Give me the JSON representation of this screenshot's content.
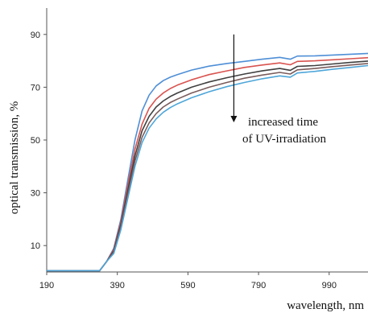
{
  "chart_data": {
    "type": "line",
    "xlabel": "wavelength, nm",
    "ylabel": "optical transmission, %",
    "xlim": [
      190,
      1100
    ],
    "ylim": [
      0,
      100
    ],
    "x_ticks": [
      190,
      390,
      590,
      790,
      990
    ],
    "y_ticks": [
      10,
      30,
      50,
      70,
      90
    ],
    "grid": false,
    "x": [
      190,
      340,
      360,
      380,
      400,
      420,
      440,
      460,
      480,
      500,
      520,
      540,
      560,
      600,
      650,
      700,
      750,
      800,
      850,
      880,
      900,
      950,
      1000,
      1050,
      1100
    ],
    "series": [
      {
        "color": "#4f8fd6",
        "values": [
          0.5,
          0.5,
          4,
          9,
          20,
          35,
          50,
          61,
          67,
          70.5,
          72.5,
          73.8,
          74.8,
          76.5,
          78.0,
          79.0,
          79.8,
          80.6,
          81.3,
          80.6,
          81.8,
          81.9,
          82.2,
          82.5,
          82.8
        ]
      },
      {
        "color": "#d9534f",
        "values": [
          0.5,
          0.5,
          4,
          8.5,
          19,
          33,
          46.5,
          56,
          62,
          65.5,
          67.8,
          69.5,
          70.8,
          72.8,
          74.8,
          76.2,
          77.5,
          78.4,
          79.2,
          78.5,
          79.8,
          80.0,
          80.4,
          80.8,
          81.2
        ]
      },
      {
        "color": "#404040",
        "values": [
          0.5,
          0.5,
          4,
          8,
          18,
          31,
          44,
          53.5,
          59,
          62.5,
          64.8,
          66.5,
          67.8,
          70.0,
          72.0,
          73.6,
          75.0,
          76.2,
          77.1,
          76.4,
          77.9,
          78.2,
          78.8,
          79.4,
          79.9
        ]
      },
      {
        "color": "#7a5c5c",
        "values": [
          0.5,
          0.5,
          4,
          7.5,
          17,
          29.5,
          42,
          51,
          56.5,
          60,
          62.5,
          64.2,
          65.5,
          67.8,
          70.0,
          71.8,
          73.4,
          74.6,
          75.6,
          75.0,
          76.6,
          77.1,
          77.8,
          78.4,
          79.0
        ]
      },
      {
        "color": "#4da6d9",
        "values": [
          0.5,
          0.5,
          4,
          7,
          16,
          28,
          40,
          49,
          54.5,
          58,
          60.5,
          62.3,
          63.7,
          66.0,
          68.3,
          70.2,
          71.8,
          73.2,
          74.3,
          73.8,
          75.4,
          76.0,
          76.8,
          77.5,
          78.2
        ]
      }
    ],
    "annotations": [
      {
        "text": "increased time",
        "line": 1
      },
      {
        "text": "of UV-irradiation",
        "line": 2
      }
    ],
    "annotation_arrow": {
      "x": 720,
      "y_from": 90,
      "y_to": 57
    }
  }
}
